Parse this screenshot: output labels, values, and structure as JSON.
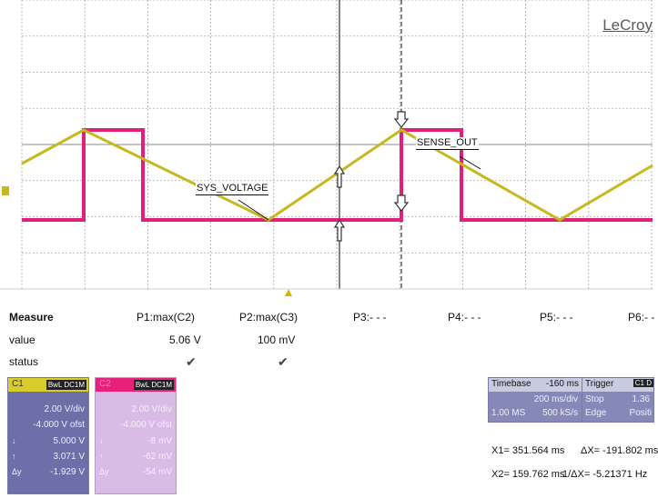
{
  "brand": "LeCroy",
  "trace_labels": {
    "c1": "SENSE_OUT",
    "c2": "SYS_VOLTAGE"
  },
  "colors": {
    "c1_trace": "#c8b81e",
    "c2_trace": "#e0207a",
    "grid": "#9a9a9a",
    "cursor": "#333333"
  },
  "measure": {
    "header": "Measure",
    "row_value": "value",
    "row_status": "status",
    "params": [
      {
        "label": "P1:max(C2)",
        "value": "5.06 V",
        "status": "✔"
      },
      {
        "label": "P2:max(C3)",
        "value": "100 mV",
        "status": "✔"
      },
      {
        "label": "P3:- - -",
        "value": "",
        "status": ""
      },
      {
        "label": "P4:- - -",
        "value": "",
        "status": ""
      },
      {
        "label": "P5:- - -",
        "value": "",
        "status": ""
      },
      {
        "label": "P6:- -",
        "value": "",
        "status": ""
      }
    ]
  },
  "channel1": {
    "name": "C1",
    "tags": "BwL DC1M",
    "vdiv": "2.00 V/div",
    "offset": "-4.000 V ofst",
    "down_val": "5.000 V",
    "up_val": "3.071 V",
    "delta_val": "-1.929 V",
    "sym_down": "↓",
    "sym_up": "↑",
    "sym_delta": "Δy"
  },
  "channel2": {
    "name": "C2",
    "tags": "BwL DC1M",
    "vdiv": "2.00 V/div",
    "offset": "-4.000 V ofst",
    "down_val": "-8 mV",
    "up_val": "-62 mV",
    "delta_val": "-54 mV",
    "sym_down": "↓",
    "sym_up": "↑",
    "sym_delta": "Δy"
  },
  "timebase": {
    "label": "Timebase",
    "delay": "-160 ms",
    "tdiv": "200 ms/div",
    "mem": "1.00 MS",
    "rate": "500 kS/s"
  },
  "trigger": {
    "label": "Trigger",
    "channel": "C1 D",
    "mode": "Stop",
    "level": "1.36",
    "type": "Edge",
    "slope": "Positi"
  },
  "cursors": {
    "x1": "X1=  351.564 ms",
    "dx": "ΔX=  -191.802 ms",
    "x2": "X2=  159.762 ms",
    "inv_dx": "1/ΔX=  -5.21371 Hz"
  }
}
